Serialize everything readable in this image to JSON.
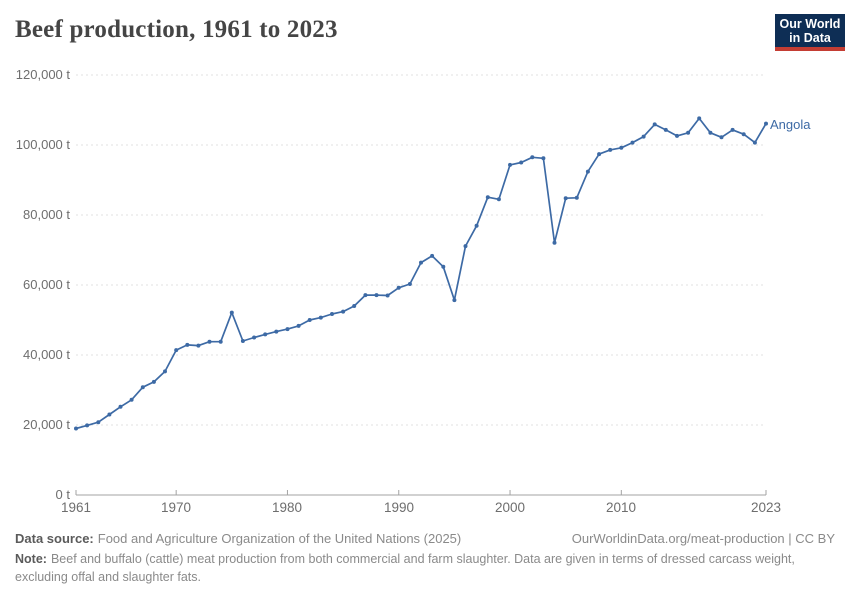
{
  "header": {
    "title": "Beef production, 1961 to 2023",
    "logo": {
      "line1": "Our World",
      "line2": "in Data"
    }
  },
  "chart": {
    "entity_label": "Angola",
    "y_axis": [
      {
        "value": 120000,
        "label": "120,000 t"
      },
      {
        "value": 100000,
        "label": "100,000 t"
      },
      {
        "value": 80000,
        "label": "80,000 t"
      },
      {
        "value": 60000,
        "label": "60,000 t"
      },
      {
        "value": 40000,
        "label": "40,000 t"
      },
      {
        "value": 20000,
        "label": "20,000 t"
      },
      {
        "value": 0,
        "label": "0 t"
      }
    ],
    "x_axis": [
      "1961",
      "1970",
      "1980",
      "1990",
      "2000",
      "2010",
      "2023"
    ],
    "colors": {
      "line": "#3d6aa5",
      "grid": "#e0e0e0",
      "axis": "#a3a3a3"
    }
  },
  "chart_data": {
    "type": "line",
    "title": "Beef production, 1961 to 2023",
    "unit": "tonnes",
    "xlim": [
      1961,
      2023
    ],
    "ylim": [
      0,
      120000
    ],
    "grid": true,
    "legend_position": "end-of-line",
    "series": [
      {
        "name": "Angola",
        "color": "#3d6aa5",
        "x": [
          1961,
          1962,
          1963,
          1964,
          1965,
          1966,
          1967,
          1968,
          1969,
          1970,
          1971,
          1972,
          1973,
          1974,
          1975,
          1976,
          1977,
          1978,
          1979,
          1980,
          1981,
          1982,
          1983,
          1984,
          1985,
          1986,
          1987,
          1988,
          1989,
          1990,
          1991,
          1992,
          1993,
          1994,
          1995,
          1996,
          1997,
          1998,
          1999,
          2000,
          2001,
          2002,
          2003,
          2004,
          2005,
          2006,
          2007,
          2008,
          2009,
          2010,
          2011,
          2012,
          2013,
          2014,
          2015,
          2016,
          2017,
          2018,
          2019,
          2020,
          2021,
          2022,
          2023
        ],
        "values": [
          19000,
          19900,
          20800,
          23000,
          25200,
          27200,
          30800,
          32300,
          35300,
          41400,
          42900,
          42700,
          43800,
          43800,
          52100,
          44000,
          45000,
          45900,
          46700,
          47400,
          48300,
          50000,
          50700,
          51700,
          52400,
          54000,
          57100,
          57100,
          57000,
          59200,
          60300,
          66400,
          68300,
          65200,
          55700,
          71100,
          76900,
          85100,
          84500,
          94300,
          95000,
          96500,
          96200,
          72100,
          84800,
          84900,
          92400,
          97400,
          98600,
          99200,
          100700,
          102400,
          105900,
          104300,
          102600,
          103500,
          107600,
          103500,
          102200,
          104300,
          103100,
          100700,
          106100
        ]
      }
    ]
  },
  "footer": {
    "data_source_label": "Data source:",
    "data_source_text": "Food and Agriculture Organization of the United Nations (2025)",
    "link_text": "OurWorldinData.org/meat-production | CC BY",
    "note_label": "Note:",
    "note_text": "Beef and buffalo (cattle) meat production from both commercial and farm slaughter. Data are given in terms of dressed carcass weight, excluding offal and slaughter fats."
  }
}
